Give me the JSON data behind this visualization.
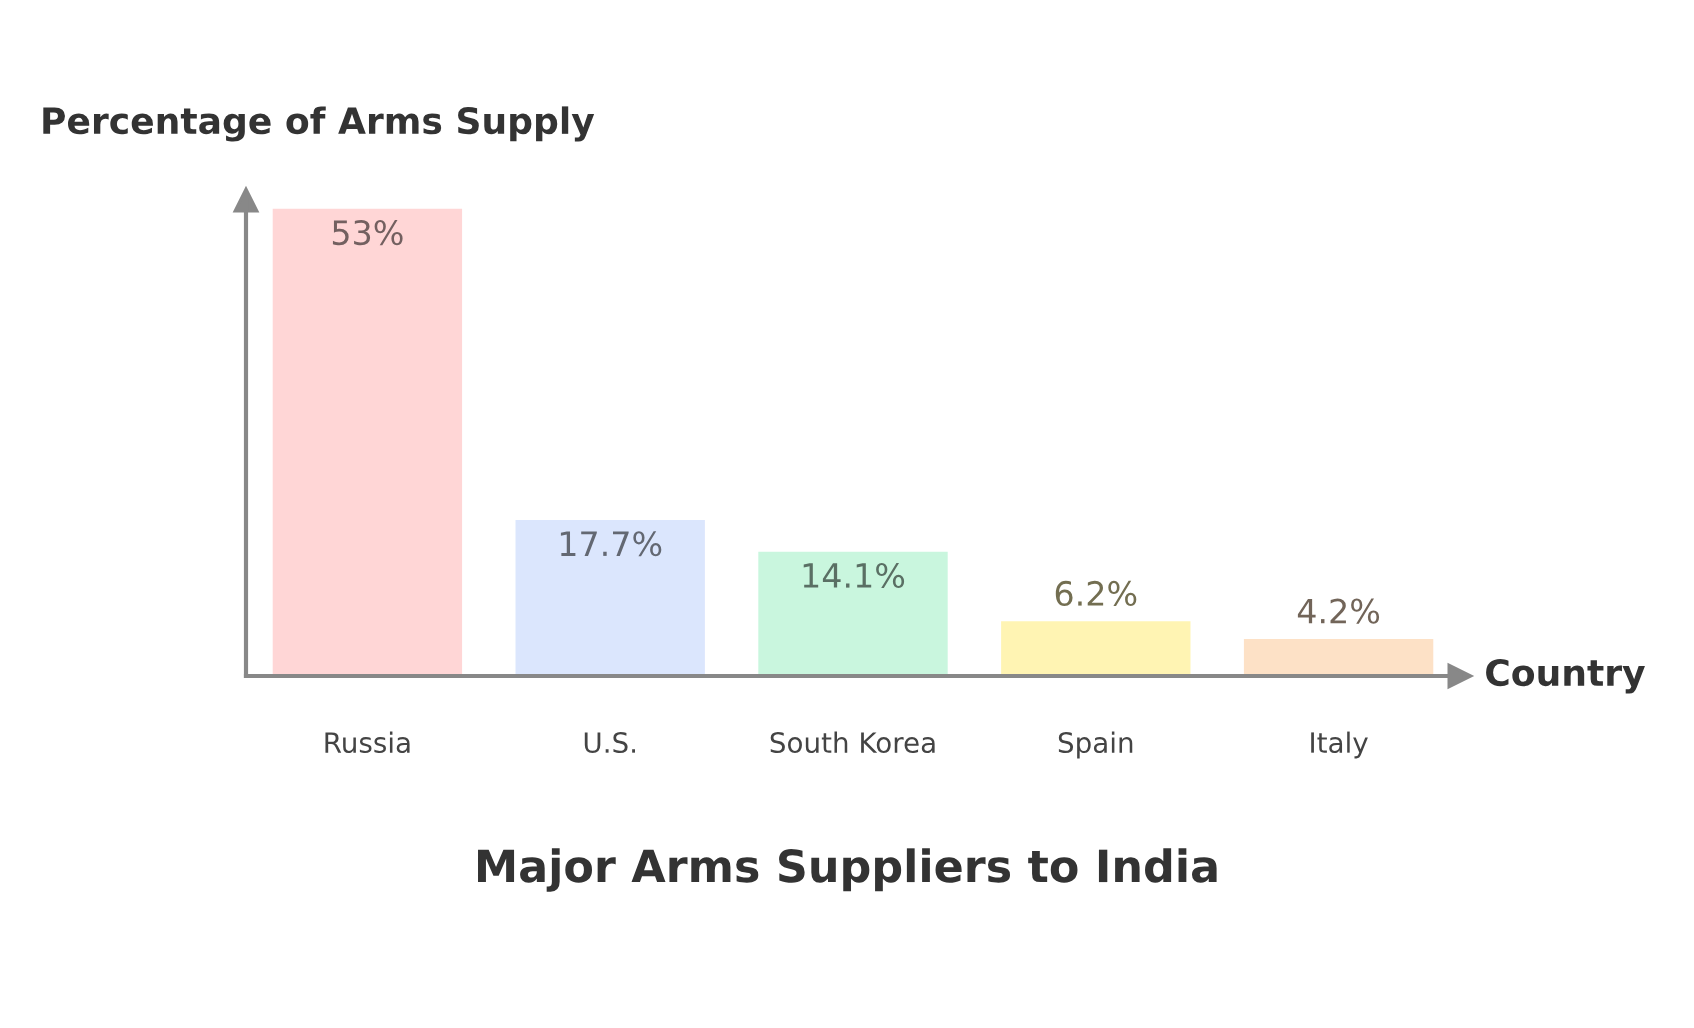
{
  "chart_data": {
    "type": "bar",
    "title": "Major Arms Suppliers to India",
    "xlabel": "Country",
    "ylabel": "Percentage of Arms Supply",
    "categories": [
      "Russia",
      "U.S.",
      "South Korea",
      "Spain",
      "Italy"
    ],
    "values": [
      53,
      17.7,
      14.1,
      6.2,
      4.2
    ],
    "value_labels": [
      "53%",
      "17.7%",
      "14.1%",
      "6.2%",
      "4.2%"
    ],
    "colors": [
      "#ffd6d6",
      "#dbe6fd",
      "#c9f6de",
      "#fff4b3",
      "#fde1c6"
    ],
    "ylim": [
      0,
      54
    ],
    "tick_labels": "x",
    "grid": false
  }
}
